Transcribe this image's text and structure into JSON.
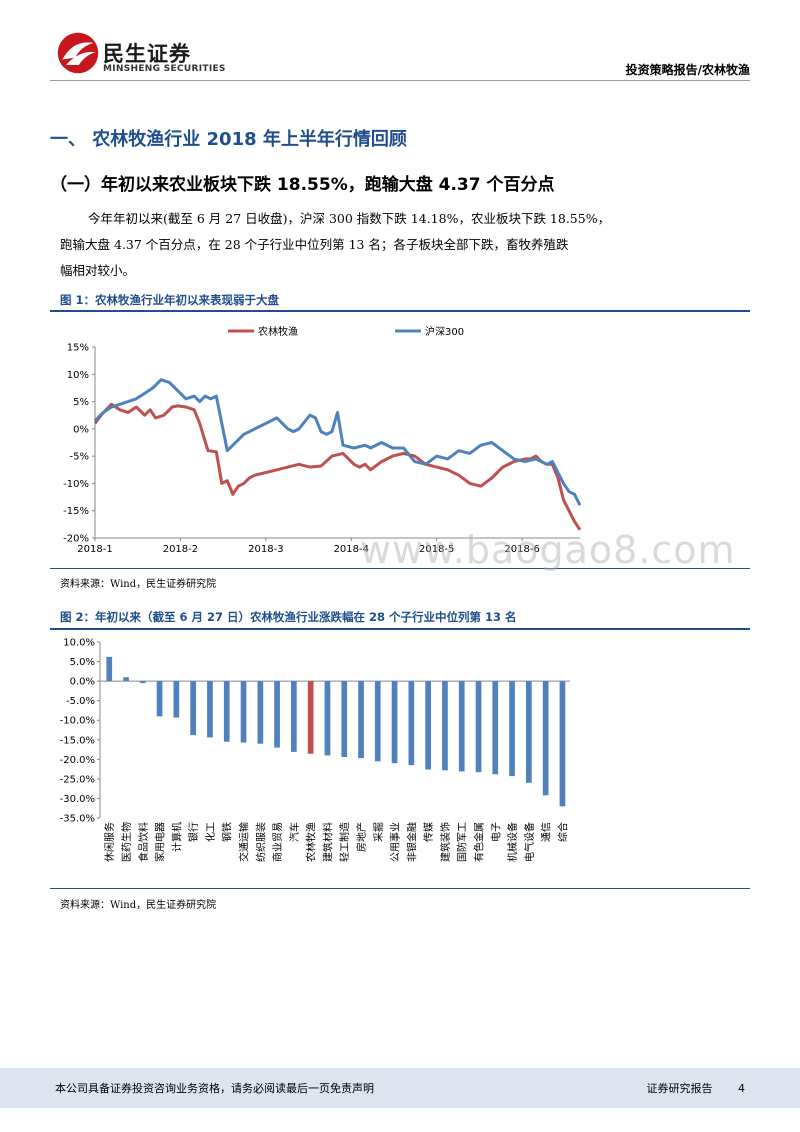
{
  "header": {
    "logo_name": "民生证券",
    "logo_sub": "MINSHENG SECURITIES",
    "report_tag": "投资策略报告/农林牧渔"
  },
  "section": {
    "title": "一、 农林牧渔行业 2018 年上半年行情回顾",
    "subtitle": "（一）年初以来农业板块下跌 18.55%，跑输大盘 4.37 个百分点"
  },
  "paragraph": {
    "line1": "今年年初以来(截至 6 月 27 日收盘)，沪深 300 指数下跌 14.18%，农业板块下跌 18.55%，",
    "line2": "跑输大盘 4.37 个百分点，在 28 个子行业中位列第 13 名；各子板块全部下跌，畜牧养殖跌",
    "line3": "幅相对较小。"
  },
  "figure1": {
    "title": "图 1：农林牧渔行业年初以来表现弱于大盘",
    "source": "资料来源：Wind，民生证券研究院"
  },
  "figure2": {
    "title": "图 2：年初以来（截至 6 月 27 日）农林牧渔行业涨跌幅在 28 个子行业中位列第 13 名",
    "source": "资料来源：Wind，民生证券研究院"
  },
  "watermark": "www.baogao8.com",
  "footer": {
    "disclaimer": "本公司具备证券投资咨询业务资格，请务必阅读最后一页免责声明",
    "label": "证券研究报告",
    "page": "4"
  },
  "chart_data": [
    {
      "type": "line",
      "title": "",
      "x_ticks": [
        "2018-1",
        "2018-2",
        "2018-3",
        "2018-4",
        "2018-5",
        "2018-6"
      ],
      "y_ticks": [
        "15%",
        "10%",
        "5%",
        "0%",
        "-5%",
        "-10%",
        "-15%",
        "-20%"
      ],
      "ylim": [
        -20,
        15
      ],
      "xlim": [
        0,
        176
      ],
      "grid": false,
      "legend": "top",
      "colors": {
        "农林牧渔": "#c0504d",
        "沪深300": "#4f81bd"
      },
      "series": [
        {
          "name": "农林牧渔",
          "x": [
            0,
            3,
            6,
            9,
            12,
            15,
            18,
            20,
            22,
            25,
            28,
            30,
            33,
            36,
            38,
            41,
            44,
            46,
            48,
            50,
            52,
            54,
            56,
            58,
            62,
            66,
            70,
            74,
            78,
            82,
            86,
            90,
            94,
            96,
            98,
            100,
            104,
            108,
            112,
            116,
            120,
            124,
            128,
            132,
            136,
            140,
            144,
            148,
            152,
            156,
            158,
            160,
            162,
            164,
            166,
            168,
            170,
            172,
            174,
            176
          ],
          "y": [
            1,
            3,
            4.5,
            3.5,
            3,
            4,
            2.5,
            3.5,
            2,
            2.5,
            4,
            4.2,
            4,
            3.5,
            1,
            -4,
            -4.2,
            -10,
            -9.5,
            -12,
            -10.5,
            -10,
            -9,
            -8.5,
            -8,
            -7.5,
            -7,
            -6.5,
            -7,
            -6.8,
            -5,
            -4.5,
            -6.5,
            -7,
            -6.5,
            -7.5,
            -6,
            -5,
            -4.5,
            -5,
            -6.5,
            -7,
            -7.5,
            -8.5,
            -10,
            -10.5,
            -9,
            -7,
            -6,
            -5.5,
            -5.5,
            -5,
            -6,
            -6.5,
            -6.5,
            -9,
            -13,
            -15,
            -17,
            -18.5
          ]
        },
        {
          "name": "沪深300",
          "x": [
            0,
            3,
            6,
            9,
            12,
            15,
            18,
            21,
            24,
            27,
            30,
            33,
            36,
            38,
            40,
            42,
            44,
            46,
            48,
            50,
            52,
            54,
            56,
            58,
            62,
            66,
            70,
            72,
            74,
            78,
            80,
            82,
            84,
            86,
            88,
            90,
            94,
            98,
            100,
            104,
            108,
            112,
            116,
            120,
            124,
            128,
            132,
            136,
            140,
            144,
            148,
            152,
            156,
            160,
            164,
            166,
            168,
            170,
            172,
            174,
            176
          ],
          "y": [
            1.5,
            3,
            4,
            4.5,
            5,
            5.5,
            6.5,
            7.5,
            9,
            8.5,
            7,
            5.5,
            6,
            5,
            6,
            5.5,
            6,
            1,
            -4,
            -3,
            -2,
            -1,
            -0.5,
            0,
            1,
            2,
            0,
            -0.5,
            0,
            2.5,
            2,
            -0.5,
            -1,
            -0.5,
            3,
            -3,
            -3.5,
            -3,
            -3.5,
            -2.5,
            -3.5,
            -3.5,
            -6,
            -6.5,
            -5,
            -5.5,
            -4,
            -4.5,
            -3,
            -2.5,
            -4,
            -5.5,
            -6,
            -5.5,
            -6.5,
            -6,
            -8,
            -10,
            -11.5,
            -12,
            -14
          ]
        }
      ]
    },
    {
      "type": "bar",
      "title": "",
      "categories": [
        "休闲服务",
        "医药生物",
        "食品饮料",
        "家用电器",
        "计算机",
        "银行",
        "化工",
        "钢铁",
        "交通运输",
        "纺织服装",
        "商业贸易",
        "汽车",
        "农林牧渔",
        "建筑材料",
        "轻工制造",
        "房地产",
        "采掘",
        "公用事业",
        "非银金融",
        "传媒",
        "建筑装饰",
        "国防军工",
        "有色金属",
        "电子",
        "机械设备",
        "电气设备",
        "通信",
        "综合"
      ],
      "values": [
        6.2,
        1.0,
        -0.5,
        -9.0,
        -9.3,
        -13.8,
        -14.4,
        -15.5,
        -15.7,
        -16.0,
        -17.0,
        -18.1,
        -18.55,
        -19.0,
        -19.4,
        -19.7,
        -20.5,
        -21.0,
        -21.5,
        -22.6,
        -22.8,
        -23.1,
        -23.3,
        -23.8,
        -24.3,
        -26.0,
        -29.2,
        -32.0
      ],
      "highlight": "农林牧渔",
      "colors": {
        "default": "#4f81bd",
        "highlight": "#c0504d"
      },
      "y_ticks": [
        "10.0%",
        "5.0%",
        "0.0%",
        "-5.0%",
        "-10.0%",
        "-15.0%",
        "-20.0%",
        "-25.0%",
        "-30.0%",
        "-35.0%"
      ],
      "ylim": [
        -35,
        10
      ]
    }
  ]
}
